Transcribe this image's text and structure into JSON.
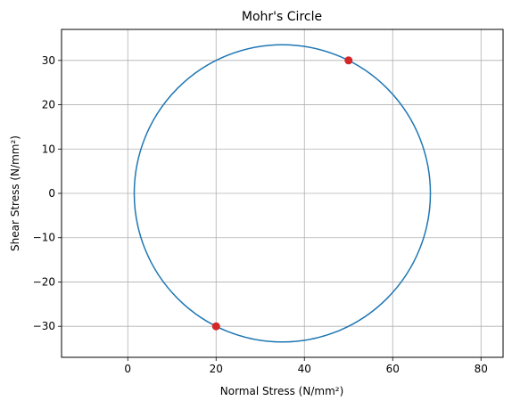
{
  "chart_data": {
    "type": "scatter",
    "title": "Mohr's Circle",
    "xlabel": "Normal Stress (N/mm²)",
    "ylabel": "Shear Stress (N/mm²)",
    "xlim": [
      -15,
      85
    ],
    "ylim": [
      -37,
      37
    ],
    "xticks": [
      0,
      20,
      40,
      60,
      80
    ],
    "yticks": [
      -30,
      -20,
      -10,
      0,
      10,
      20,
      30
    ],
    "grid": true,
    "circle": {
      "center": [
        35,
        0
      ],
      "radius": 33.54,
      "color": "#1f77b4"
    },
    "points": [
      {
        "x": 50,
        "y": 30
      },
      {
        "x": 20,
        "y": -30
      }
    ],
    "point_color": "#d62728"
  }
}
